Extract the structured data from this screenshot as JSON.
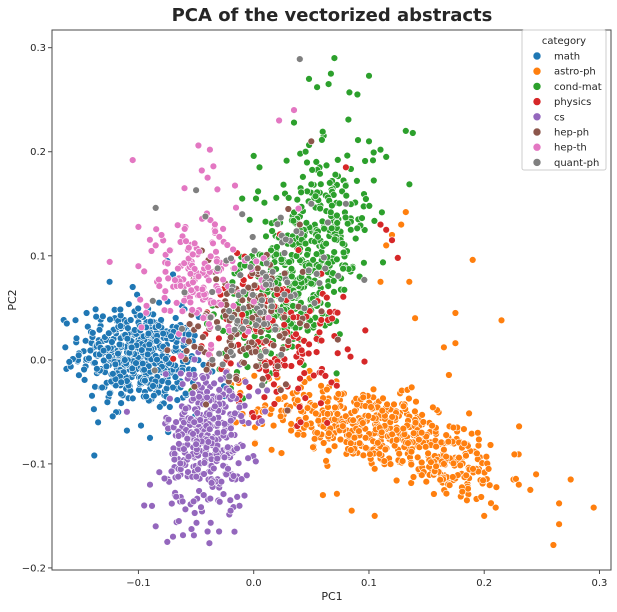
{
  "chart_data": {
    "type": "scatter",
    "title": "PCA of the vectorized abstracts",
    "xlabel": "PC1",
    "ylabel": "PC2",
    "xlim": [
      -0.175,
      0.31
    ],
    "ylim": [
      -0.202,
      0.317
    ],
    "x_ticks": [
      -0.1,
      0.0,
      0.1,
      0.2,
      0.3
    ],
    "x_tick_labels": [
      "−0.1",
      "0.0",
      "0.1",
      "0.2",
      "0.3"
    ],
    "y_ticks": [
      -0.2,
      -0.1,
      0.0,
      0.1,
      0.2,
      0.3
    ],
    "y_tick_labels": [
      "−0.2",
      "−0.1",
      "0.0",
      "0.1",
      "0.2",
      "0.3"
    ],
    "grid": false,
    "legend": {
      "title": "category",
      "position": "top-right"
    },
    "series": [
      {
        "name": "math",
        "color": "#1f77b4",
        "clusters": [
          {
            "n": 520,
            "cx": -0.098,
            "cy": 0.002,
            "sx": 0.026,
            "sy": 0.024,
            "r": -0.15
          }
        ],
        "points": [
          [
            -0.16,
            -0.002
          ],
          [
            -0.145,
            0.045
          ],
          [
            -0.125,
            0.075
          ],
          [
            -0.135,
            -0.06
          ],
          [
            -0.11,
            -0.068
          ],
          [
            -0.09,
            -0.075
          ],
          [
            -0.105,
            0.07
          ],
          [
            -0.075,
            0.095
          ],
          [
            -0.07,
            0.082
          ]
        ]
      },
      {
        "name": "astro-ph",
        "color": "#ff7f0e",
        "clusters": [
          {
            "n": 420,
            "cx": 0.095,
            "cy": -0.063,
            "sx": 0.045,
            "sy": 0.02,
            "r": -0.42
          },
          {
            "n": 140,
            "cx": 0.17,
            "cy": -0.1,
            "sx": 0.025,
            "sy": 0.017,
            "r": -0.3
          }
        ],
        "points": [
          [
            0.295,
            -0.142
          ],
          [
            0.275,
            -0.115
          ],
          [
            0.265,
            -0.138
          ],
          [
            0.26,
            -0.178
          ],
          [
            0.265,
            -0.158
          ],
          [
            0.245,
            -0.11
          ],
          [
            0.24,
            -0.125
          ],
          [
            0.23,
            -0.12
          ],
          [
            0.215,
            0.038
          ],
          [
            0.19,
            0.096
          ],
          [
            0.175,
            0.016
          ],
          [
            0.165,
            0.012
          ],
          [
            0.14,
            0.04
          ],
          [
            0.132,
            0.142
          ],
          [
            0.128,
            0.13
          ],
          [
            0.12,
            0.12
          ],
          [
            0.115,
            0.11
          ],
          [
            0.105,
            -0.15
          ],
          [
            0.085,
            -0.145
          ],
          [
            0.06,
            -0.13
          ],
          [
            0.165,
            -0.1
          ],
          [
            0.2,
            -0.15
          ],
          [
            0.21,
            -0.142
          ],
          [
            0.185,
            -0.135
          ],
          [
            0.175,
            0.045
          ],
          [
            0.135,
            0.075
          ],
          [
            0.11,
            0.075
          ]
        ]
      },
      {
        "name": "cond-mat",
        "color": "#2ca02c",
        "clusters": [
          {
            "n": 300,
            "cx": 0.055,
            "cy": 0.12,
            "sx": 0.025,
            "sy": 0.04,
            "r": 0.25
          },
          {
            "n": 260,
            "cx": 0.02,
            "cy": 0.055,
            "sx": 0.025,
            "sy": 0.032,
            "r": 0.3
          }
        ],
        "points": [
          [
            0.07,
            0.29
          ],
          [
            0.067,
            0.275
          ],
          [
            0.1,
            0.273
          ],
          [
            0.083,
            0.257
          ],
          [
            0.09,
            0.255
          ],
          [
            0.065,
            0.265
          ],
          [
            0.055,
            0.262
          ],
          [
            0.048,
            0.27
          ],
          [
            0.045,
            0.2
          ],
          [
            0.035,
            0.228
          ],
          [
            0.132,
            0.22
          ],
          [
            0.138,
            0.218
          ],
          [
            0.11,
            0.202
          ],
          [
            0.115,
            0.195
          ],
          [
            0.1,
            0.21
          ],
          [
            0.0,
            0.196
          ],
          [
            0.005,
            0.185
          ],
          [
            0.002,
            0.155
          ],
          [
            -0.01,
            0.155
          ]
        ]
      },
      {
        "name": "physics",
        "color": "#d62728",
        "clusters": [
          {
            "n": 150,
            "cx": 0.02,
            "cy": 0.02,
            "sx": 0.03,
            "sy": 0.035,
            "r": 0.1
          }
        ],
        "points": [
          [
            0.08,
            0.185
          ],
          [
            0.11,
            0.13
          ],
          [
            0.115,
            0.125
          ],
          [
            0.12,
            0.115
          ],
          [
            0.125,
            0.098
          ],
          [
            0.0,
            -0.055
          ],
          [
            0.01,
            -0.05
          ]
        ]
      },
      {
        "name": "cs",
        "color": "#9467bd",
        "clusters": [
          {
            "n": 380,
            "cx": -0.04,
            "cy": -0.075,
            "sx": 0.018,
            "sy": 0.035,
            "r": 0.05
          }
        ],
        "points": [
          [
            -0.075,
            -0.175
          ],
          [
            -0.07,
            -0.17
          ],
          [
            -0.065,
            -0.155
          ],
          [
            -0.095,
            -0.14
          ],
          [
            -0.085,
            -0.16
          ],
          [
            -0.09,
            -0.12
          ],
          [
            -0.03,
            -0.165
          ],
          [
            -0.04,
            -0.165
          ],
          [
            -0.02,
            -0.145
          ],
          [
            -0.11,
            -0.05
          ]
        ]
      },
      {
        "name": "hep-ph",
        "color": "#8c564b",
        "clusters": [
          {
            "n": 120,
            "cx": -0.005,
            "cy": 0.035,
            "sx": 0.03,
            "sy": 0.035,
            "r": 0.15
          }
        ],
        "points": [
          [
            0.03,
            0.145
          ],
          [
            0.04,
            0.13
          ],
          [
            0.05,
            0.21
          ],
          [
            -0.045,
            0.105
          ]
        ]
      },
      {
        "name": "hep-th",
        "color": "#e377c2",
        "clusters": [
          {
            "n": 160,
            "cx": -0.048,
            "cy": 0.08,
            "sx": 0.024,
            "sy": 0.03,
            "r": 0.0
          }
        ],
        "points": [
          [
            -0.105,
            0.192
          ],
          [
            -0.048,
            0.206
          ],
          [
            -0.038,
            0.202
          ],
          [
            -0.035,
            0.186
          ],
          [
            -0.045,
            0.182
          ],
          [
            -0.04,
            0.175
          ],
          [
            -0.06,
            0.165
          ],
          [
            0.035,
            0.24
          ],
          [
            0.022,
            0.23
          ],
          [
            -0.08,
            0.12
          ],
          [
            -0.085,
            0.11
          ],
          [
            -0.095,
            0.085
          ],
          [
            -0.1,
            0.09
          ]
        ]
      },
      {
        "name": "quant-ph",
        "color": "#7f7f7f",
        "clusters": [
          {
            "n": 90,
            "cx": 0.005,
            "cy": 0.06,
            "sx": 0.03,
            "sy": 0.035,
            "r": 0.1
          }
        ],
        "points": [
          [
            0.04,
            0.289
          ],
          [
            -0.085,
            0.146
          ],
          [
            -0.05,
            0.163
          ],
          [
            0.05,
            0.15
          ],
          [
            0.08,
            0.15
          ],
          [
            -0.01,
            0.14
          ]
        ]
      }
    ]
  }
}
